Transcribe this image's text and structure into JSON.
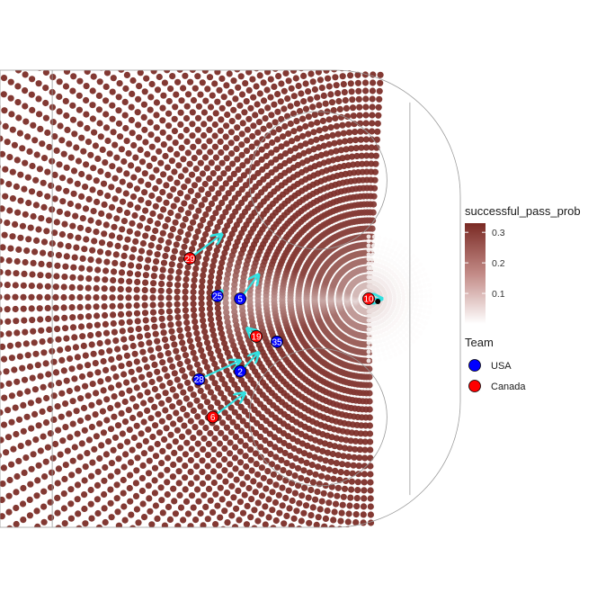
{
  "chart_data": {
    "type": "scatter",
    "title": "",
    "xlabel": "",
    "ylabel": "",
    "grid": false,
    "colors": {
      "fill_low": "#ffffff",
      "fill_high": "#7a2a24",
      "usa": "#0000ff",
      "canada": "#ff0000",
      "arrow": "#33e0e0",
      "puck": "#000000",
      "rink_line": "#9a9a9a"
    },
    "fill_scale": {
      "title": "successful_pass_prob",
      "min": 0,
      "max": 0.33,
      "ticks": [
        {
          "value": 0.3,
          "label": "0.3"
        },
        {
          "value": 0.2,
          "label": "0.2"
        },
        {
          "value": 0.1,
          "label": "0.1"
        }
      ]
    },
    "team_legend": {
      "title": "Team",
      "entries": [
        {
          "label": "USA",
          "color": "#0000ff"
        },
        {
          "label": "Canada",
          "color": "#ff0000"
        }
      ]
    },
    "passer": {
      "number": "10",
      "team": "Canada",
      "x": 180,
      "y": 42.5
    },
    "puck": {
      "x": 182,
      "y": 42
    },
    "players": [
      {
        "number": "29",
        "team": "Canada",
        "x": 141,
        "y": 50,
        "vx": 7,
        "vy": 4.5
      },
      {
        "number": "25",
        "team": "USA",
        "x": 147,
        "y": 43,
        "vx": 1,
        "vy": 1
      },
      {
        "number": "5",
        "team": "USA",
        "x": 152,
        "y": 42.5,
        "vx": 4,
        "vy": 4.5
      },
      {
        "number": "19",
        "team": "Canada",
        "x": 155.5,
        "y": 35.5,
        "vx": -2,
        "vy": 1.5
      },
      {
        "number": "35",
        "team": "USA",
        "x": 160,
        "y": 34.5,
        "vx": 0,
        "vy": 0
      },
      {
        "number": "2",
        "team": "USA",
        "x": 152,
        "y": 29,
        "vx": 4,
        "vy": 3.5
      },
      {
        "number": "28",
        "team": "USA",
        "x": 143,
        "y": 27.5,
        "vx": 9,
        "vy": 3.5
      },
      {
        "number": "6",
        "team": "Canada",
        "x": 146,
        "y": 20.5,
        "vx": 7,
        "vy": 4.5
      }
    ],
    "passer_arrow": {
      "vx": 3,
      "vy": 0
    },
    "xlim": [
      100,
      200
    ],
    "ylim": [
      0,
      85
    ]
  }
}
